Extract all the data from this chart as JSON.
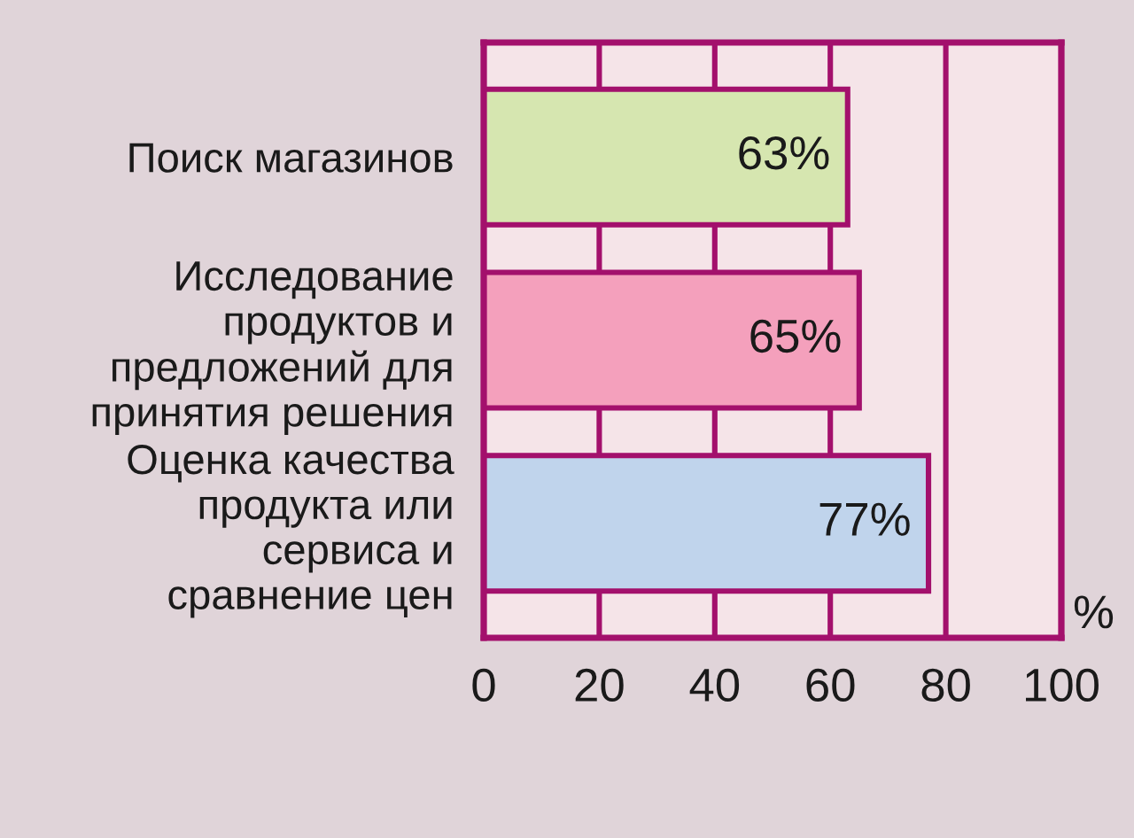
{
  "chart_data": {
    "type": "bar",
    "orientation": "horizontal",
    "categories": [
      "Поиск магазинов",
      "Исследование\nпродуктов и\nпредложений для\nпринятия решения",
      "Оценка качества\nпродукта или\nсервиса и\nсравнение цен"
    ],
    "values": [
      63,
      65,
      77
    ],
    "colors": [
      "#d6e6b0",
      "#f4a0bc",
      "#c0d4ec"
    ],
    "value_labels": [
      "63%",
      "65%",
      "77%"
    ],
    "xlabel": "%",
    "xlim": [
      0,
      100
    ],
    "xticks": [
      0,
      20,
      40,
      60,
      80,
      100
    ],
    "grid": "x"
  }
}
